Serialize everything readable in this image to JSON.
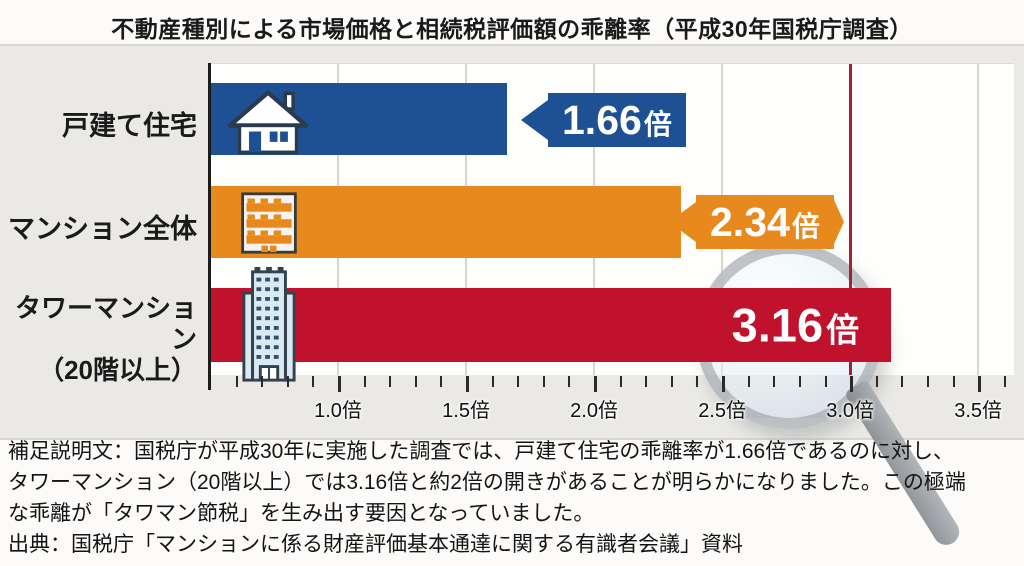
{
  "title": "不動産種別による市場価格と相続税評価額の乖離率（平成30年国税庁調査）",
  "chart_data": {
    "type": "bar",
    "orientation": "horizontal",
    "title": "不動産種別による市場価格と相続税評価額の乖離率（平成30年国税庁調査）",
    "categories": [
      "戸建て住宅",
      "マンション全体",
      "タワーマンション（20階以上）"
    ],
    "values": [
      1.66,
      2.34,
      3.16
    ],
    "value_labels": [
      "1.66倍",
      "2.34倍",
      "3.16倍"
    ],
    "colors": [
      "#1e5193",
      "#e8891d",
      "#c0122d"
    ],
    "xlim": [
      0.5,
      3.64
    ],
    "x_ticks": [
      1.0,
      1.5,
      2.0,
      2.5,
      3.0,
      3.5
    ],
    "x_tick_labels": [
      "1.0倍",
      "1.5倍",
      "2.0倍",
      "2.5倍",
      "3.0倍",
      "3.5倍"
    ],
    "minor_ticks": {
      "start": 0.6,
      "end": 3.6,
      "step": 0.1
    },
    "reference_line_x": 3.0,
    "reference_line_color": "#a32138",
    "grid": true,
    "legend": false
  },
  "rows": [
    {
      "label": "戸建て住宅",
      "number": "1.66",
      "unit": "倍",
      "icon": "house-icon"
    },
    {
      "label": "マンション全体",
      "number": "2.34",
      "unit": "倍",
      "icon": "apartment-building-icon"
    },
    {
      "label_line1": "タワーマンション",
      "label_line2": "（20階以上）",
      "number": "3.16",
      "unit": "倍",
      "icon": "tower-building-icon"
    }
  ],
  "footer": {
    "note_lines": [
      "補足説明文：国税庁が平成30年に実施した調査では、戸建て住宅の乖離率が1.66倍であるのに対し、",
      "タワーマンション（20階以上）では3.16倍と約2倍の開きがあることが明らかになりました。この極端",
      "な乖離が「タワマン節税」を生み出す要因となっていました。"
    ],
    "source": "出典：国税庁「マンションに係る財産評価基本通達に関する有識者会議」資料"
  }
}
